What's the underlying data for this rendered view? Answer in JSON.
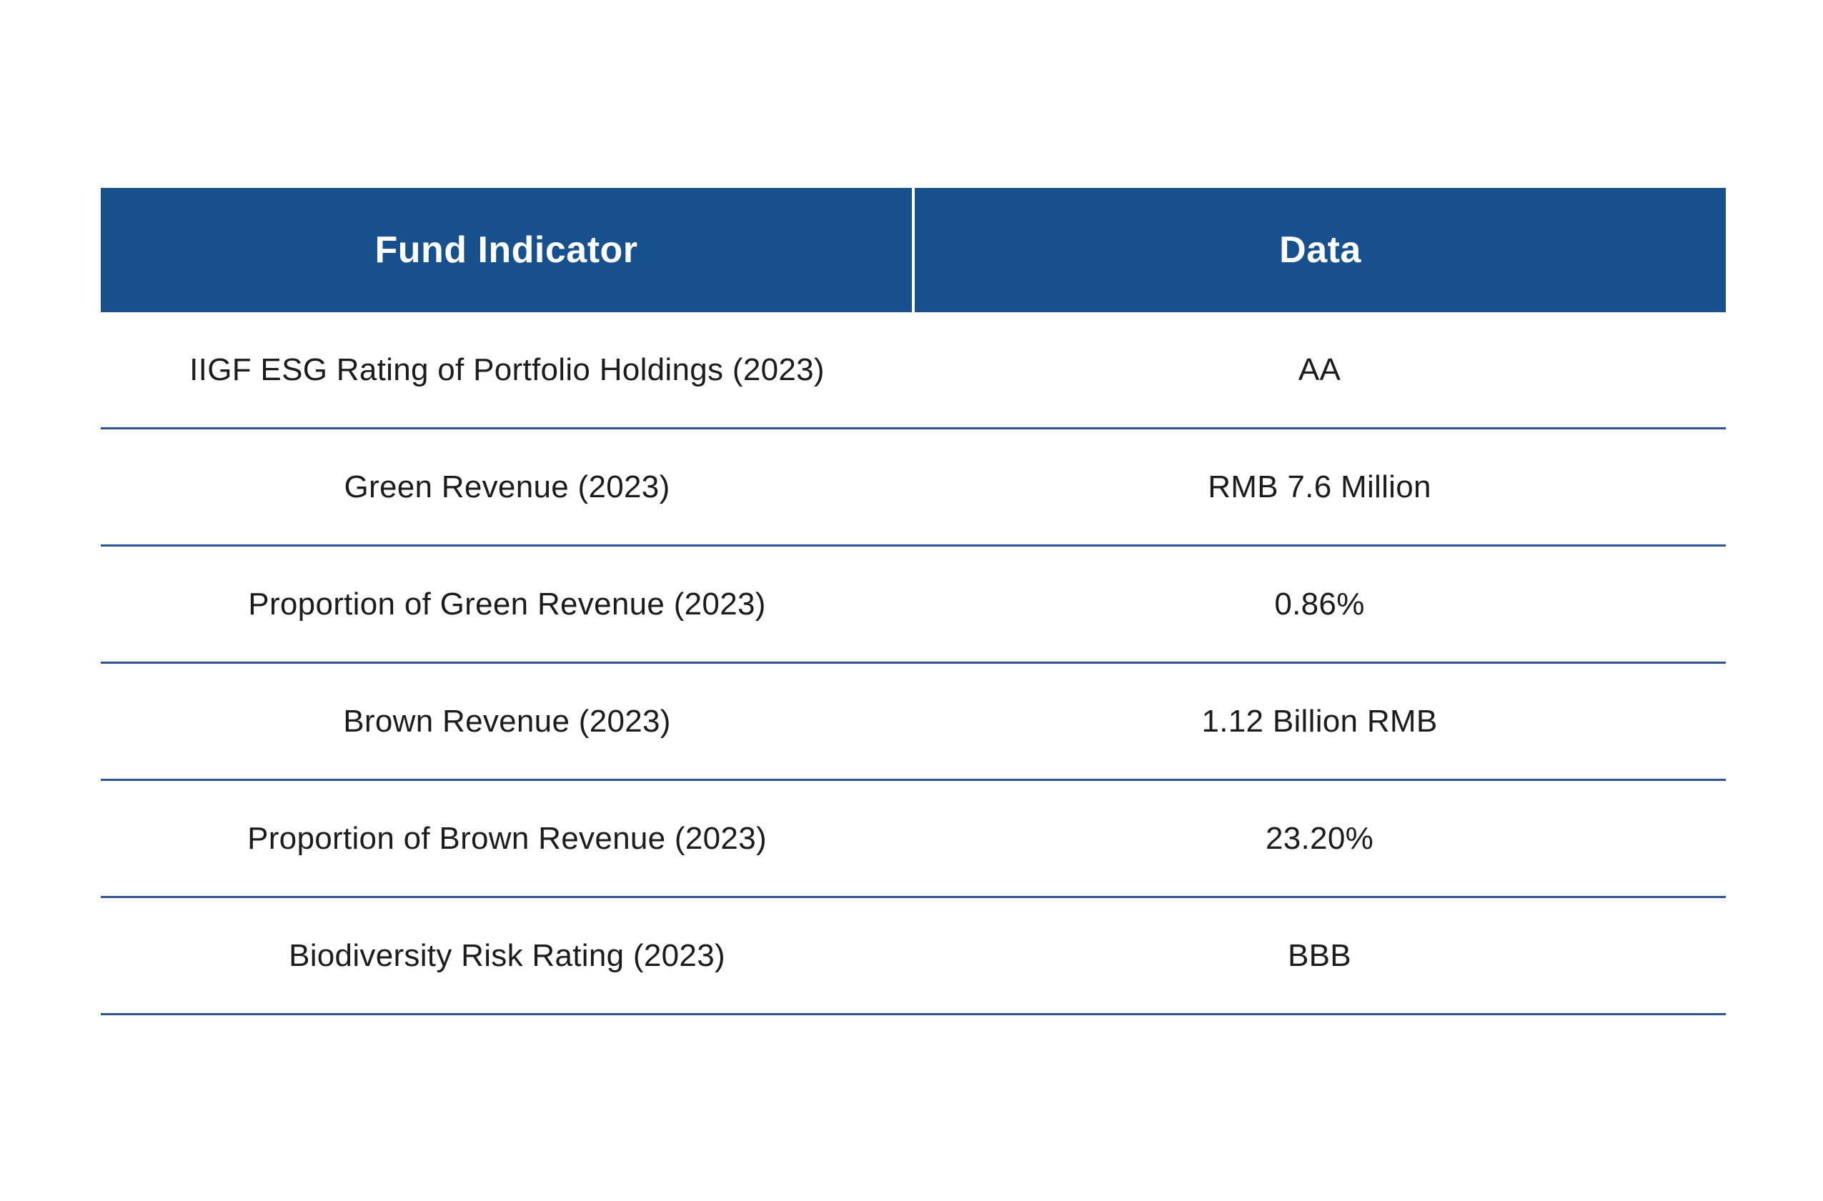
{
  "chart_data": {
    "type": "table",
    "columns": [
      "Fund Indicator",
      "Data"
    ],
    "rows": [
      {
        "indicator": "IIGF ESG Rating of Portfolio Holdings (2023)",
        "value": "AA"
      },
      {
        "indicator": "Green Revenue (2023)",
        "value": "RMB 7.6 Million"
      },
      {
        "indicator": "Proportion of Green Revenue (2023)",
        "value": "0.86%"
      },
      {
        "indicator": "Brown Revenue (2023)",
        "value": "1.12 Billion RMB"
      },
      {
        "indicator": "Proportion of Brown Revenue (2023)",
        "value": "23.20%"
      },
      {
        "indicator": "Biodiversity Risk Rating (2023)",
        "value": "BBB"
      }
    ],
    "layout": {
      "header_position": "top",
      "column_split": "50/50",
      "grid": "horizontal-rules-only"
    }
  },
  "colors": {
    "header_background": "#17508C",
    "header_text": "#FFFFFF",
    "row_divider": "#2F5496",
    "row_text": "#1C1C1E",
    "page_background": "#FFFFFF"
  }
}
